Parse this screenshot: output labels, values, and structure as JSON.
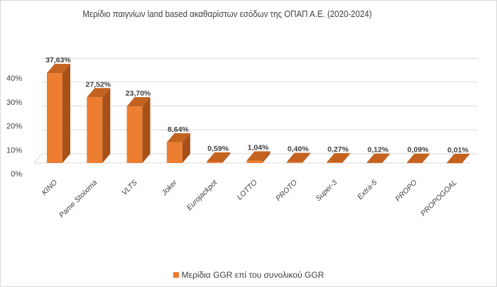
{
  "chart_data": {
    "type": "bar",
    "title": "Μερίδιο παιγνίων land based  ακαθαρίστων εσόδων της ΟΠΑΠ  Α.Ε. (2020-2024)",
    "categories": [
      "KINO",
      "Pame Stoixima",
      "VLTS",
      "Joker",
      "Eurojackpot",
      "LOTTO",
      "PROTO",
      "Super-3",
      "Extra-5",
      "PROPO",
      "PROPOGOAL"
    ],
    "series": [
      {
        "name": "Μερίδια GGR επί του συνολικού GGR",
        "values": [
          37.63,
          27.52,
          23.7,
          8.64,
          0.59,
          1.04,
          0.4,
          0.27,
          0.12,
          0.09,
          0.01
        ],
        "labels": [
          "37,63%",
          "27,52%",
          "23,70%",
          "8,64%",
          "0,59%",
          "1,04%",
          "0,40%",
          "0,27%",
          "0,12%",
          "0,09%",
          "0,01%"
        ]
      }
    ],
    "yticks": [
      "0%",
      "10%",
      "20%",
      "30%",
      "40%"
    ],
    "ylim": [
      0,
      40
    ],
    "grid": true,
    "legend_position": "bottom",
    "style": "3d-column",
    "colors": {
      "front": "#ED7D31",
      "top": "#C4621F",
      "side": "#A6511A"
    }
  }
}
